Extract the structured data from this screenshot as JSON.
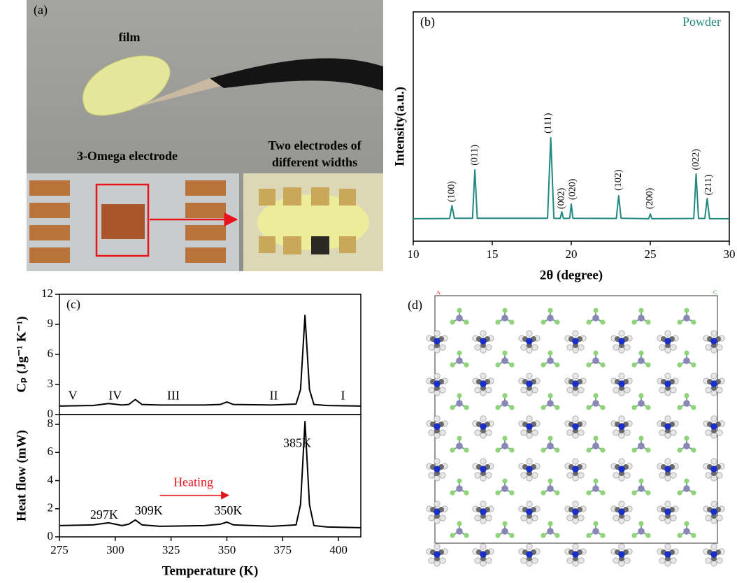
{
  "photo": {
    "label": "(a)",
    "film": "film",
    "electrode": "3-Omega electrode",
    "inset": [
      "Two electrodes of",
      "different widths"
    ]
  },
  "structure": {
    "label": "(d)",
    "corner_a": "A",
    "corner_c": "C"
  },
  "chart_data": [
    {
      "type": "line",
      "label": "(b)",
      "xlabel": "2θ (degree)",
      "ylabel": "Intensity(a.u.)",
      "xlim": [
        10,
        30
      ],
      "xticks": [
        10,
        15,
        20,
        25,
        30
      ],
      "ylim": [
        0,
        100
      ],
      "x": [
        10,
        12.3,
        12.45,
        12.6,
        13.75,
        13.9,
        14.05,
        18.5,
        18.7,
        18.9,
        19.3,
        19.4,
        19.5,
        19.9,
        20.0,
        20.1,
        22.85,
        23.0,
        23.15,
        24.9,
        25.0,
        25.1,
        27.75,
        27.9,
        28.05,
        28.45,
        28.6,
        28.75,
        30
      ],
      "series": [
        {
          "name": "Powder",
          "color": "#21897f",
          "values": [
            9.8,
            9.9,
            15.5,
            10,
            10,
            31.1,
            10,
            10,
            45.1,
            10,
            9.9,
            12.8,
            9.9,
            10,
            16.2,
            10,
            9.9,
            19.8,
            10,
            9.8,
            11.9,
            9.8,
            9.9,
            29.3,
            9.9,
            9.9,
            18.6,
            9.8,
            9.8
          ]
        }
      ],
      "annotations": [
        {
          "text": "(100)",
          "x": 12.45,
          "y": 17
        },
        {
          "text": "(011)",
          "x": 13.9,
          "y": 33
        },
        {
          "text": "(111)",
          "x": 18.55,
          "y": 47
        },
        {
          "text": "(002)",
          "x": 19.4,
          "y": 14
        },
        {
          "text": "(020)",
          "x": 20.1,
          "y": 18
        },
        {
          "text": "(102)",
          "x": 23.0,
          "y": 22
        },
        {
          "text": "(200)",
          "x": 25.0,
          "y": 14
        },
        {
          "text": "(022)",
          "x": 27.9,
          "y": 31
        },
        {
          "text": "(211)",
          "x": 28.7,
          "y": 20
        }
      ]
    },
    {
      "type": "line",
      "label": "(c)",
      "ylabel": "Cₚ (Jg⁻¹ K⁻¹)",
      "xlim": [
        275,
        410
      ],
      "ylim": [
        0,
        12
      ],
      "yticks": [
        0,
        3,
        6,
        9,
        12
      ],
      "x": [
        275,
        290,
        297,
        303,
        306,
        309,
        312,
        320,
        340,
        347,
        350,
        353,
        370,
        381,
        383,
        385,
        387,
        389,
        395,
        410
      ],
      "series": [
        {
          "color": "#000000",
          "values": [
            0.85,
            0.9,
            1.1,
            0.95,
            1.0,
            1.5,
            1.0,
            0.95,
            0.95,
            1.0,
            1.25,
            1.0,
            0.95,
            1.05,
            2.5,
            9.9,
            2.5,
            1.0,
            0.9,
            0.85
          ]
        }
      ],
      "annotations": [
        {
          "text": "V",
          "x": 281,
          "y": 1.8
        },
        {
          "text": "IV",
          "x": 300,
          "y": 1.8
        },
        {
          "text": "III",
          "x": 326,
          "y": 1.8
        },
        {
          "text": "II",
          "x": 371,
          "y": 1.8
        },
        {
          "text": "I",
          "x": 402,
          "y": 1.8
        }
      ]
    },
    {
      "type": "line",
      "xlabel": "Temperature (K)",
      "ylabel": "Heat flow (mW)",
      "xlim": [
        275,
        410
      ],
      "xticks": [
        275,
        300,
        325,
        350,
        375,
        400
      ],
      "ylim": [
        0,
        8.7
      ],
      "yticks": [
        0,
        2,
        4,
        6,
        8
      ],
      "x": [
        275,
        290,
        297,
        303,
        306,
        309,
        312,
        320,
        340,
        347,
        350,
        353,
        370,
        381,
        383,
        385,
        387,
        389,
        395,
        410
      ],
      "series": [
        {
          "color": "#000000",
          "values": [
            0.8,
            0.85,
            1.0,
            0.8,
            0.9,
            1.2,
            0.85,
            0.75,
            0.8,
            0.9,
            1.05,
            0.85,
            0.75,
            0.85,
            2.3,
            8.2,
            2.3,
            0.8,
            0.7,
            0.65
          ]
        }
      ],
      "annotations": [
        {
          "text": "297K",
          "x": 295,
          "y": 1.5
        },
        {
          "text": "309K",
          "x": 315,
          "y": 1.8
        },
        {
          "text": "350K",
          "x": 350.6,
          "y": 1.8
        },
        {
          "text": "385K",
          "x": 381.5,
          "y": 6.6
        },
        {
          "text": "Heating",
          "x": 335,
          "y": 3.8,
          "color": "#e8141b",
          "arrow": true
        }
      ]
    }
  ]
}
